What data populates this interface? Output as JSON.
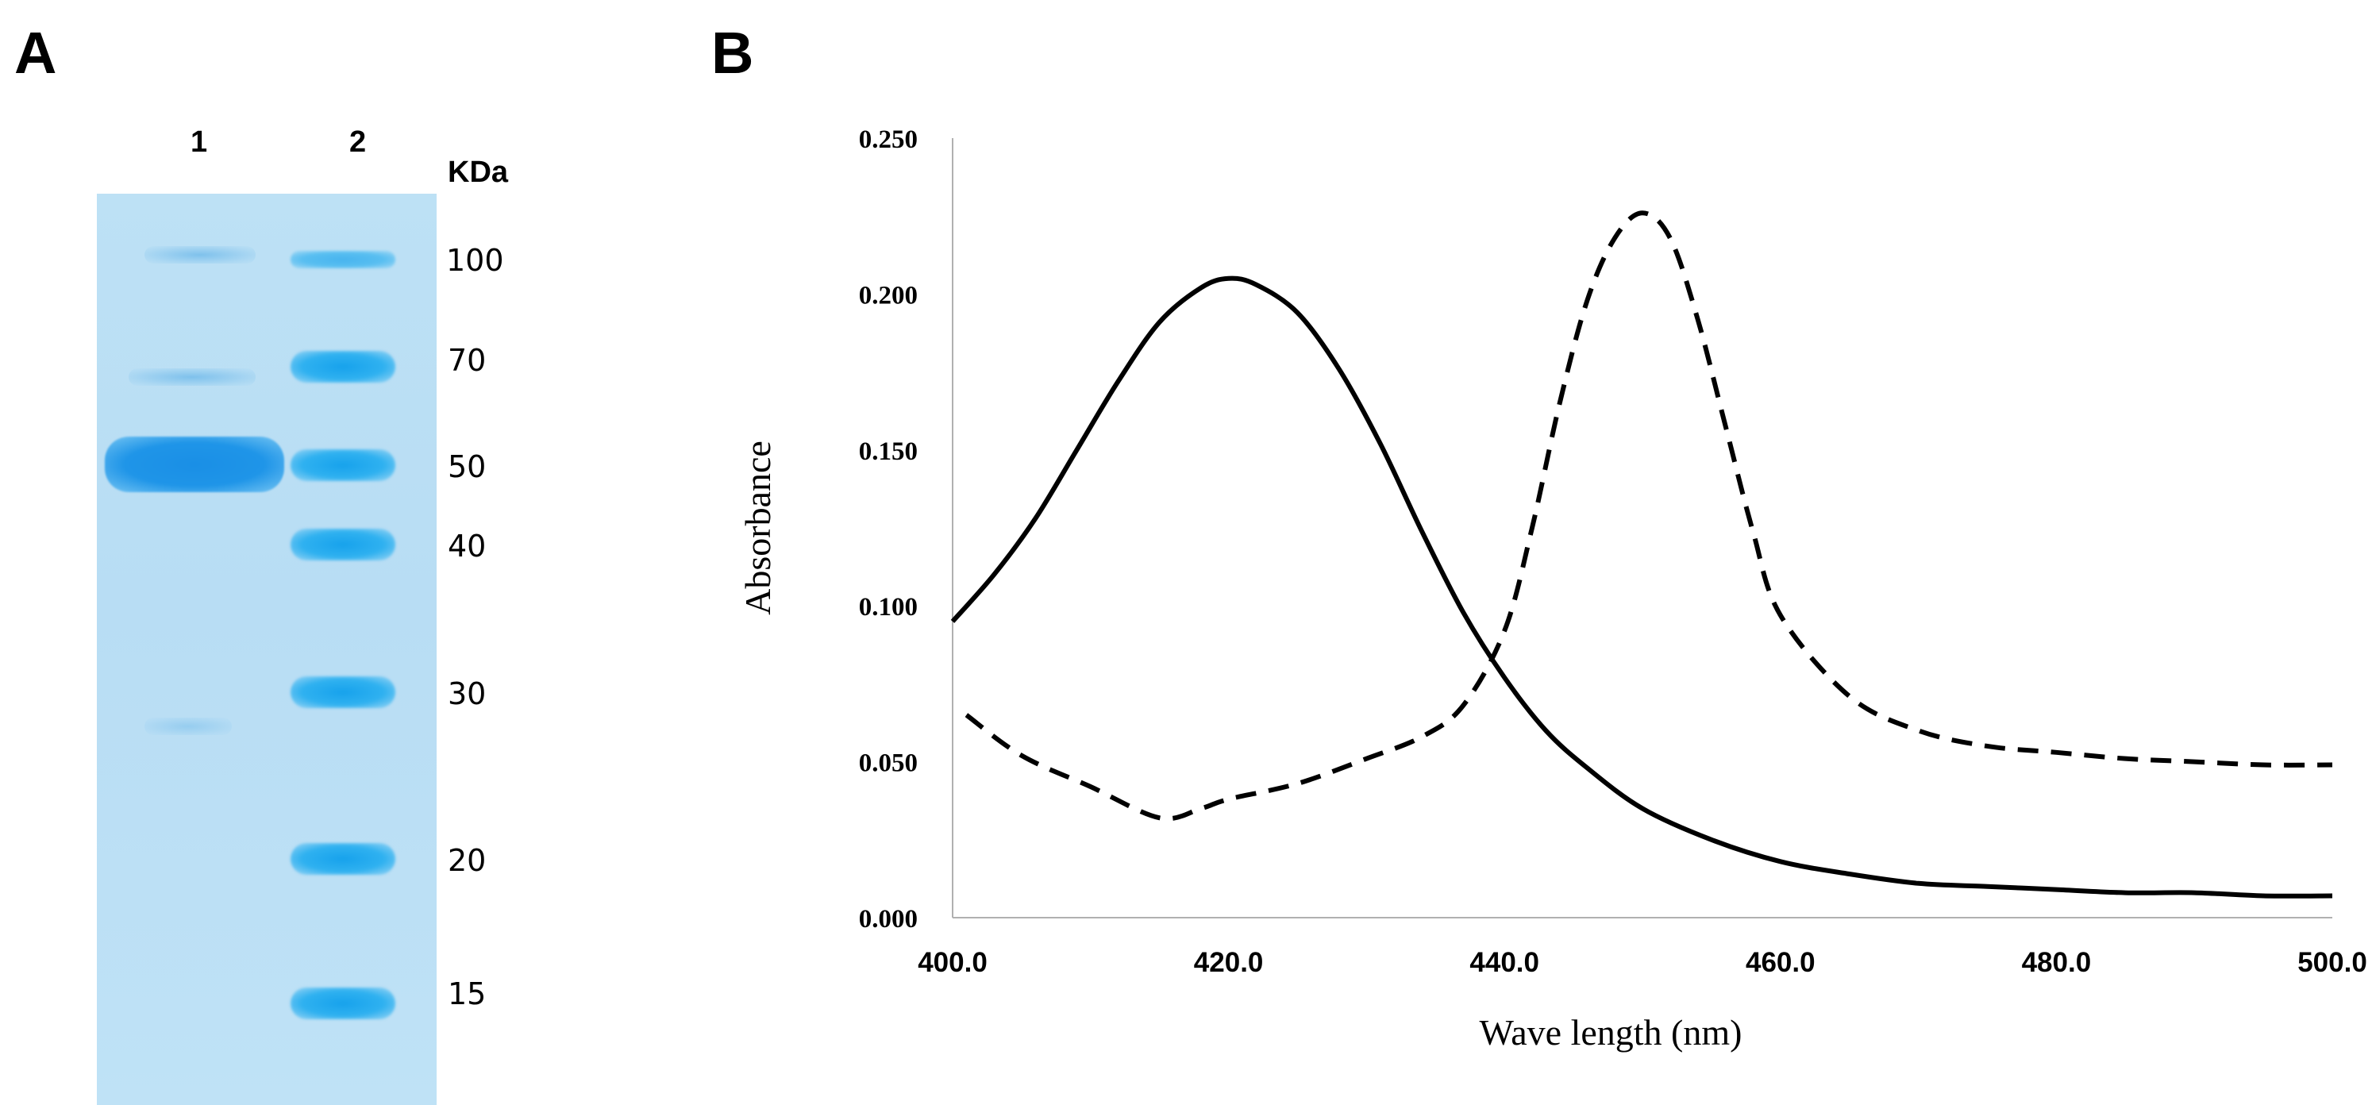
{
  "panels": {
    "a_label": "A",
    "b_label": "B"
  },
  "gel": {
    "lane_labels": [
      "1",
      "2"
    ],
    "unit_label": "KDa",
    "markers": [
      {
        "kda": "100"
      },
      {
        "kda": "70"
      },
      {
        "kda": "50"
      },
      {
        "kda": "40"
      },
      {
        "kda": "30"
      },
      {
        "kda": "20"
      },
      {
        "kda": "15"
      }
    ]
  },
  "chart_data": {
    "type": "line",
    "title": "",
    "xlabel": "Wave length (nm)",
    "ylabel": "Absorbance",
    "xlim": [
      400.0,
      500.0
    ],
    "ylim": [
      0.0,
      0.25
    ],
    "xticks": [
      "400.0",
      "420.0",
      "440.0",
      "460.0",
      "480.0",
      "500.0"
    ],
    "yticks": [
      "0.000",
      "0.050",
      "0.100",
      "0.150",
      "0.200",
      "0.250"
    ],
    "grid": false,
    "legend": "none",
    "series": [
      {
        "name": "solid",
        "style": "solid",
        "x": [
          400,
          403,
          406,
          409,
          412,
          415,
          418,
          420,
          422,
          425,
          428,
          431,
          434,
          437,
          440,
          443,
          446,
          450,
          455,
          460,
          465,
          470,
          475,
          480,
          485,
          490,
          495,
          500
        ],
        "y": [
          0.095,
          0.11,
          0.128,
          0.15,
          0.172,
          0.191,
          0.202,
          0.205,
          0.203,
          0.194,
          0.176,
          0.152,
          0.124,
          0.098,
          0.077,
          0.06,
          0.048,
          0.035,
          0.025,
          0.018,
          0.014,
          0.011,
          0.01,
          0.009,
          0.008,
          0.008,
          0.007,
          0.007
        ]
      },
      {
        "name": "dashed",
        "style": "dashed",
        "x": [
          401,
          405,
          410,
          415,
          418,
          420,
          425,
          430,
          434,
          437,
          440,
          442,
          444,
          446,
          448,
          450,
          452,
          454,
          456,
          458,
          460,
          465,
          470,
          475,
          480,
          485,
          490,
          495,
          500
        ],
        "y": [
          0.065,
          0.052,
          0.042,
          0.032,
          0.035,
          0.038,
          0.043,
          0.051,
          0.058,
          0.068,
          0.092,
          0.125,
          0.165,
          0.198,
          0.218,
          0.226,
          0.218,
          0.192,
          0.158,
          0.124,
          0.097,
          0.071,
          0.06,
          0.055,
          0.053,
          0.051,
          0.05,
          0.049,
          0.049
        ]
      }
    ]
  }
}
